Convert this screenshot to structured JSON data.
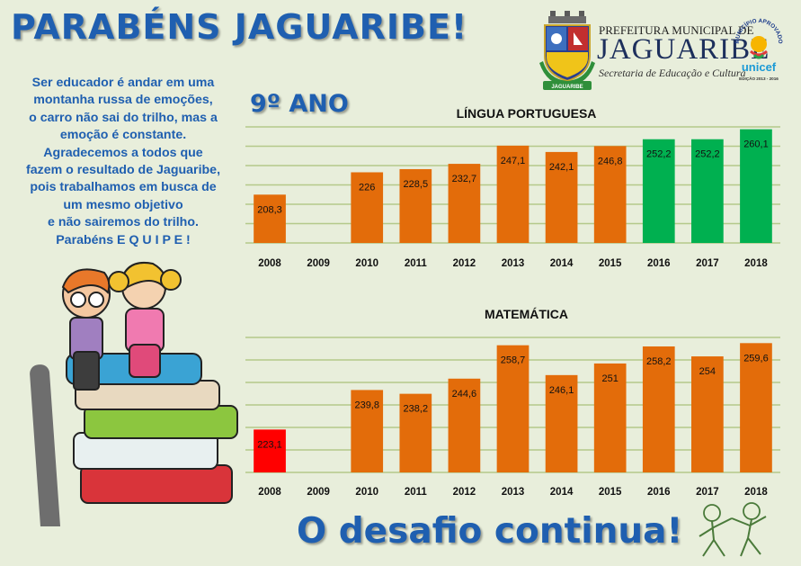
{
  "header": {
    "headline": "PARABÉNS  JAGUARIBE!"
  },
  "logo": {
    "line1": "PREFEITURA MUNICIPAL DE",
    "line2": "JAGUARIBE",
    "line3": "Secretaria de Educação e Cultura",
    "crest_ribbon": "JAGUARIBE",
    "seal_arc": "MUNICÍPIO APROVADO",
    "seal_brand": "unicef",
    "seal_edition": "EDIÇÃO 2013 - 2016"
  },
  "message": {
    "lines": [
      "Ser educador é andar em uma",
      "montanha russa de emoções,",
      "o carro não sai do trilho, mas a",
      "emoção é constante.",
      "Agradecemos a todos que",
      "fazem o resultado de Jaguaribe,",
      "pois trabalhamos em busca de",
      "um mesmo objetivo",
      "e não sairemos do trilho.",
      "Parabéns E Q U I P E !"
    ]
  },
  "grade_label": "9º ANO",
  "footer": "O desafio continua!",
  "colors": {
    "orange": "#e36c0a",
    "green": "#00b050",
    "red": "#ff0000",
    "title_blue": "#1f5fb0",
    "background": "#e8eedb"
  },
  "chart_data": [
    {
      "type": "bar",
      "title": "LÍNGUA PORTUGUESA",
      "categories": [
        "2008",
        "2009",
        "2010",
        "2011",
        "2012",
        "2013",
        "2014",
        "2015",
        "2016",
        "2017",
        "2018"
      ],
      "values": [
        208.3,
        null,
        226,
        228.5,
        232.7,
        247.1,
        242.1,
        246.8,
        252.2,
        252.2,
        260.1
      ],
      "labels": [
        "208,3",
        "",
        "226",
        "228,5",
        "232,7",
        "247,1",
        "242,1",
        "246,8",
        "252,2",
        "252,2",
        "260,1"
      ],
      "bar_colors": [
        "orange",
        "",
        "orange",
        "orange",
        "orange",
        "orange",
        "orange",
        "orange",
        "green",
        "green",
        "green"
      ],
      "ylim": [
        170,
        262
      ],
      "grid": true,
      "xlabel": "",
      "ylabel": ""
    },
    {
      "type": "bar",
      "title": "MATEMÁTICA",
      "categories": [
        "2008",
        "2009",
        "2010",
        "2011",
        "2012",
        "2013",
        "2014",
        "2015",
        "2016",
        "2017",
        "2018"
      ],
      "values": [
        223.1,
        null,
        239.8,
        238.2,
        244.6,
        258.7,
        246.1,
        251,
        258.2,
        254,
        259.6
      ],
      "labels": [
        "223,1",
        "",
        "239,8",
        "238,2",
        "244,6",
        "258,7",
        "246,1",
        "251",
        "258,2",
        "254",
        "259,6"
      ],
      "bar_colors": [
        "red",
        "",
        "orange",
        "orange",
        "orange",
        "orange",
        "orange",
        "orange",
        "orange",
        "orange",
        "orange"
      ],
      "ylim": [
        205,
        262
      ],
      "grid": true,
      "xlabel": "",
      "ylabel": ""
    }
  ]
}
